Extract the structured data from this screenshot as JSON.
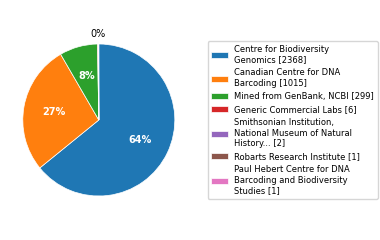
{
  "chart_data": {
    "type": "pie",
    "categories": [
      "Centre for Biodiversity\nGenomics [2368]",
      "Canadian Centre for DNA\nBarcoding [1015]",
      "Mined from GenBank, NCBI [299]",
      "Generic Commercial Labs [6]",
      "Smithsonian Institution,\nNational Museum of Natural\nHistory... [2]",
      "Robarts Research Institute [1]",
      "Paul Hebert Centre for DNA\nBarcoding and Biodiversity\nStudies [1]"
    ],
    "values": [
      2368,
      1015,
      299,
      6,
      2,
      1,
      1
    ],
    "value_labels": [
      "64%",
      "27%",
      "8%",
      "0%",
      null,
      null,
      null
    ],
    "legend": "right"
  }
}
